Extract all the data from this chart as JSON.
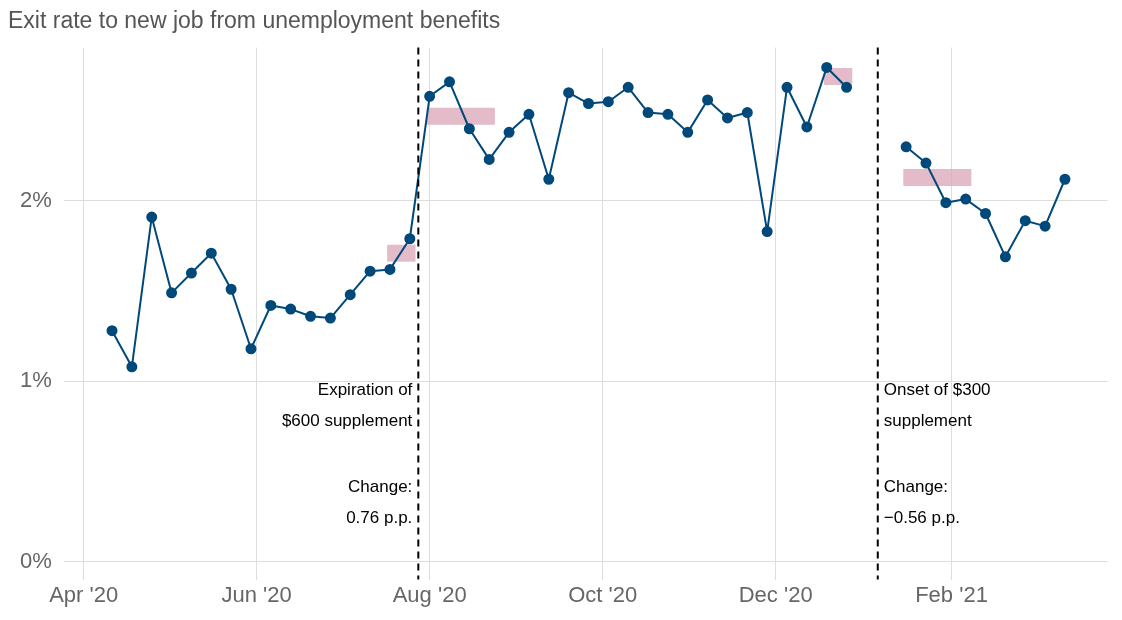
{
  "chart_data": {
    "type": "line",
    "title": "Exit rate to new job from unemployment benefits",
    "x": [
      "2020-04-11",
      "2020-04-18",
      "2020-04-25",
      "2020-05-02",
      "2020-05-09",
      "2020-05-16",
      "2020-05-23",
      "2020-05-30",
      "2020-06-06",
      "2020-06-13",
      "2020-06-20",
      "2020-06-27",
      "2020-07-04",
      "2020-07-11",
      "2020-07-18",
      "2020-07-25",
      "2020-08-01",
      "2020-08-08",
      "2020-08-15",
      "2020-08-22",
      "2020-08-29",
      "2020-09-05",
      "2020-09-12",
      "2020-09-19",
      "2020-09-26",
      "2020-10-03",
      "2020-10-10",
      "2020-10-17",
      "2020-10-24",
      "2020-10-31",
      "2020-11-07",
      "2020-11-14",
      "2020-11-21",
      "2020-11-28",
      "2020-12-05",
      "2020-12-12",
      "2020-12-19",
      "2020-12-26",
      "2021-01-02",
      "2021-01-09",
      "2021-01-16",
      "2021-01-23",
      "2021-01-30",
      "2021-02-06",
      "2021-02-13",
      "2021-02-20",
      "2021-02-27",
      "2021-03-06",
      "2021-03-13"
    ],
    "series": [
      {
        "color": "#00497a",
        "values": [
          1.28,
          1.08,
          1.91,
          1.49,
          1.6,
          1.71,
          1.51,
          1.18,
          1.42,
          1.4,
          1.36,
          1.35,
          1.48,
          1.61,
          1.62,
          1.79,
          2.58,
          2.66,
          2.4,
          2.23,
          2.38,
          2.48,
          2.12,
          2.6,
          2.54,
          2.55,
          2.63,
          2.49,
          2.48,
          2.38,
          2.56,
          2.46,
          2.49,
          1.83,
          2.63,
          2.41,
          2.74,
          2.63,
          null,
          null,
          2.3,
          2.21,
          1.99,
          2.01,
          1.93,
          1.69,
          1.89,
          1.86,
          2.12
        ]
      },
      {
        "type": "line",
        "color": "#dcaabc",
        "marker": "none",
        "x": [
          "2020-07-17",
          "2020-07-27"
        ],
        "values": [
          1.71,
          1.71
        ]
      },
      {
        "type": "line",
        "color": "#dcaabc",
        "marker": "none",
        "x": [
          "2020-07-31",
          "2020-08-24"
        ],
        "values": [
          2.47,
          2.47
        ]
      },
      {
        "type": "line",
        "color": "#dcaabc",
        "marker": "none",
        "x": [
          "2020-12-18",
          "2020-12-28"
        ],
        "values": [
          2.69,
          2.69
        ]
      },
      {
        "type": "line",
        "color": "#dcaabc",
        "marker": "none",
        "x": [
          "2021-01-15",
          "2021-02-08"
        ],
        "values": [
          2.13,
          2.13
        ]
      }
    ],
    "xlim": [
      "2020-03-25",
      "2021-03-28"
    ],
    "xticks": [
      {
        "value": "2020-04-01",
        "label": "Apr '20"
      },
      {
        "value": "2020-06-01",
        "label": "Jun '20"
      },
      {
        "value": "2020-08-01",
        "label": "Aug '20"
      },
      {
        "value": "2020-10-01",
        "label": "Oct '20"
      },
      {
        "value": "2020-12-01",
        "label": "Dec '20"
      },
      {
        "value": "2021-02-01",
        "label": "Feb '21"
      }
    ],
    "ylim": [
      -0.1,
      2.85
    ],
    "yticks": [
      {
        "value": 0,
        "label": "0%"
      },
      {
        "value": 1,
        "label": "1%"
      },
      {
        "value": 2,
        "label": "2%"
      }
    ],
    "ref_lines": [
      {
        "axis": "x",
        "value": "2020-07-28",
        "label": "Expiration of\n$600 supplement",
        "color": "#000000",
        "line_style": "dashed"
      },
      {
        "axis": "x",
        "value": "2021-01-06",
        "label": "Onset of $300\nsupplement",
        "color": "#000000",
        "line_style": "dashed"
      }
    ],
    "annotations": [
      {
        "text": "Change:\n0.76 p.p.",
        "x": "2020-07-28",
        "y": 0.41
      },
      {
        "text": "Change:\n−0.56 p.p.",
        "x": "2021-01-06",
        "y": 0.41
      }
    ],
    "grid": true,
    "legend": false,
    "marker": "circle",
    "line_style": "solid"
  }
}
